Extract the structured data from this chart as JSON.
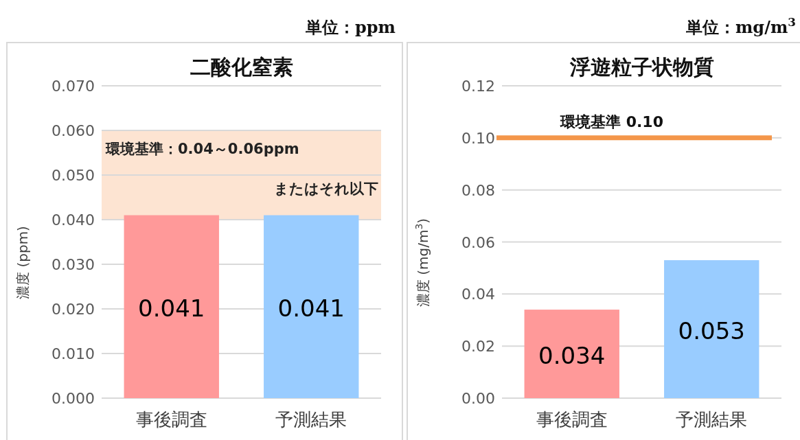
{
  "chart_data": [
    {
      "type": "bar",
      "title": "二酸化窒素",
      "ylabel": "濃度 (ppm)",
      "categories": [
        "事後調査",
        "予測結果"
      ],
      "values": [
        0.041,
        0.041
      ],
      "colors": [
        "#ff9999",
        "#99ccff"
      ],
      "data_labels": true,
      "ylim": [
        0,
        0.07
      ],
      "yticks": [
        {
          "value": 0,
          "label": "0.000"
        },
        {
          "value": 0.01,
          "label": "0.010"
        },
        {
          "value": 0.02,
          "label": "0.020"
        },
        {
          "value": 0.03,
          "label": "0.030"
        },
        {
          "value": 0.04,
          "label": "0.040"
        },
        {
          "value": 0.05,
          "label": "0.050"
        },
        {
          "value": 0.06,
          "label": "0.060"
        },
        {
          "value": 0.07,
          "label": "0.070"
        }
      ],
      "grid": "y",
      "bands": [
        {
          "axis": "y",
          "from": 0.04,
          "to": 0.06,
          "label": "環境基準：0.04～0.06ppm またはそれ以下",
          "color": "#fde4d2"
        }
      ],
      "annotations": [
        "単位：ppm"
      ]
    },
    {
      "type": "bar",
      "title": "浮遊粒子状物質",
      "ylabel": "濃度 (mg/m$^{3}$)",
      "categories": [
        "事後調査",
        "予測結果"
      ],
      "values": [
        0.034,
        0.053
      ],
      "colors": [
        "#ff9999",
        "#99ccff"
      ],
      "data_labels": true,
      "ylim": [
        0,
        0.12
      ],
      "yticks": [
        {
          "value": 0,
          "label": "0.00"
        },
        {
          "value": 0.02,
          "label": "0.02"
        },
        {
          "value": 0.04,
          "label": "0.04"
        },
        {
          "value": 0.06,
          "label": "0.06"
        },
        {
          "value": 0.08,
          "label": "0.08"
        },
        {
          "value": 0.1,
          "label": "0.10"
        },
        {
          "value": 0.12,
          "label": "0.12"
        }
      ],
      "grid": "y",
      "ref_lines": [
        {
          "axis": "y",
          "value": 0.1,
          "label": "環境基準 0.10",
          "color": "#f4964a"
        }
      ],
      "annotations": [
        "単位：mg/m$^{3}$"
      ]
    }
  ]
}
